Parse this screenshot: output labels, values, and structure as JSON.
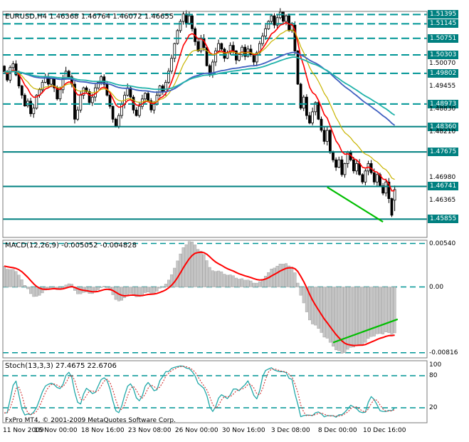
{
  "window": {
    "app": "FxPro MT4",
    "symbol": "EURUSD",
    "timeframe": "H4"
  },
  "main_panel": {
    "title": "EURUSD,H4 1.46368 1.46764 1.46072 1.46655"
  },
  "macd_panel": {
    "title": "MACD(12,26,9) -0.005052 -0.004828",
    "value_main": -0.005052,
    "value_signal": -0.004828
  },
  "stoch_panel": {
    "title": "Stoch(13,3,3) 27.4675 22.6706",
    "value_k": 27.4675,
    "value_d": 22.6706
  },
  "footer": {
    "copyright": "FxPro MT4, © 2001-2009 MetaQuotes Software Corp."
  },
  "colors": {
    "background": "#FFFFFF",
    "foreground": "#000000",
    "grid_teal": "#009696",
    "level_teal": "#008080",
    "bull_candle": "#FFFFFF",
    "bear_candle": "#000000",
    "macd_histogram": "#C6C6C6",
    "macd_signal": "#FF0000",
    "stoch_main": "#20A8A8",
    "stoch_signal": "#D03030",
    "trendline_green": "#00BE00",
    "price_box_bg": "#008080",
    "price_box_text": "#FFFFFF"
  },
  "chart_data": {
    "type": "candlestick",
    "symbol": "EURUSD",
    "timeframe": "H4",
    "current_bar": {
      "open": 1.46368,
      "high": 1.46764,
      "low": 1.46072,
      "close": 1.46655
    },
    "x_axis": {
      "labels": [
        {
          "bar": 0,
          "text": "11 Nov 2009"
        },
        {
          "bar": 18,
          "text": "16 Nov 00:00"
        },
        {
          "bar": 34,
          "text": "18 Nov 16:00"
        },
        {
          "bar": 50,
          "text": "23 Nov 08:00"
        },
        {
          "bar": 66,
          "text": "26 Nov 00:00"
        },
        {
          "bar": 82,
          "text": "30 Nov 16:00"
        },
        {
          "bar": 98,
          "text": "3 Dec 08:00"
        },
        {
          "bar": 114,
          "text": "8 Dec 00:00"
        },
        {
          "bar": 130,
          "text": "10 Dec 16:00"
        }
      ]
    },
    "price_axis": {
      "min": 1.4536,
      "max": 1.5148,
      "ticks": [
        {
          "price": 1.5007,
          "label": "1.50070"
        },
        {
          "price": 1.49455,
          "label": "1.49455"
        },
        {
          "price": 1.4883,
          "label": "1.48830"
        },
        {
          "price": 1.4821,
          "label": "1.48210"
        },
        {
          "price": 1.4698,
          "label": "1.46980"
        },
        {
          "price": 1.46365,
          "label": "1.46365"
        }
      ],
      "levels": [
        {
          "price": 1.51395,
          "label": "1.51395",
          "style": "dashed"
        },
        {
          "price": 1.51145,
          "label": "1.51145",
          "style": "dashed"
        },
        {
          "price": 1.50751,
          "label": "1.50751",
          "style": "dashed"
        },
        {
          "price": 1.50303,
          "label": "1.50303",
          "style": "dashed"
        },
        {
          "price": 1.49802,
          "label": "1.49802",
          "style": "dashed"
        },
        {
          "price": 1.48973,
          "label": "1.48973",
          "style": "dashed"
        },
        {
          "price": 1.4836,
          "label": "1.48360",
          "style": "solid"
        },
        {
          "price": 1.47675,
          "label": "1.47675",
          "style": "solid"
        },
        {
          "price": 1.46741,
          "label": "1.46741",
          "style": "solid"
        },
        {
          "price": 1.45855,
          "label": "1.45855",
          "style": "solid"
        }
      ]
    },
    "closes": [
      1.4985,
      1.4962,
      1.4996,
      1.5006,
      1.4976,
      1.4946,
      1.4921,
      1.4892,
      1.4905,
      1.4871,
      1.4886,
      1.4921,
      1.4936,
      1.4956,
      1.4971,
      1.4951,
      1.4966,
      1.4941,
      1.4911,
      1.4936,
      1.4966,
      1.4986,
      1.4971,
      1.4951,
      1.4856,
      1.4881,
      1.4921,
      1.4941,
      1.4931,
      1.4901,
      1.4916,
      1.4941,
      1.4956,
      1.4971,
      1.4951,
      1.4921,
      1.4891,
      1.4856,
      1.4836,
      1.4866,
      1.4896,
      1.4921,
      1.4941,
      1.4916,
      1.4881,
      1.4866,
      1.4891,
      1.4911,
      1.4926,
      1.4906,
      1.4881,
      1.4896,
      1.4921,
      1.4946,
      1.4931,
      1.4956,
      1.4986,
      1.5021,
      1.5061,
      1.5096,
      1.5121,
      1.5141,
      1.5116,
      1.5136,
      1.5101,
      1.5066,
      1.5041,
      1.5075,
      1.505,
      1.5001,
      1.4976,
      1.5011,
      1.5041,
      1.5061,
      1.5046,
      1.5021,
      1.5036,
      1.5056,
      1.5041,
      1.5016,
      1.5031,
      1.5051,
      1.5026,
      1.5046,
      1.5031,
      1.5011,
      1.5036,
      1.5061,
      1.5081,
      1.5101,
      1.5121,
      1.5136,
      1.5111,
      1.5131,
      1.5146,
      1.5121,
      1.5136,
      1.5096,
      1.5111,
      1.5041,
      1.4951,
      1.4886,
      1.4916,
      1.4866,
      1.4846,
      1.4876,
      1.4901,
      1.4856,
      1.4826,
      1.4796,
      1.4826,
      1.4766,
      1.4746,
      1.4726,
      1.4746,
      1.4706,
      1.4736,
      1.4766,
      1.4746,
      1.4716,
      1.4736,
      1.4706,
      1.4686,
      1.4716,
      1.4736,
      1.4711,
      1.4686,
      1.4706,
      1.4676,
      1.4656,
      1.4686,
      1.4641,
      1.4596,
      1.46655
    ],
    "moving_averages": [
      {
        "name": "ma-fast-red",
        "period": 8,
        "color": "#FF0000",
        "width": 1.6
      },
      {
        "name": "ma-medium-yellow",
        "period": 16,
        "color": "#C8B400",
        "width": 1.2
      },
      {
        "name": "ma-slow-blue",
        "period": 64,
        "color": "#4060C0",
        "width": 1.8
      },
      {
        "name": "ma-slowest-teal",
        "period": 84,
        "color": "#20B2AA",
        "width": 1.8
      }
    ],
    "macd": {
      "fast": 12,
      "slow": 26,
      "signal_period": 9,
      "range": [
        -0.0088,
        0.0058
      ],
      "gridlines": [
        {
          "value": 0.0054,
          "label": "0.00540"
        },
        {
          "value": 0,
          "label": "0.00"
        },
        {
          "value": -0.00816,
          "label": "-0.00816"
        }
      ]
    },
    "stochastic": {
      "k_period": 13,
      "d_period": 3,
      "slowing": 3,
      "gridlines": [
        {
          "value": 80,
          "label": "80"
        },
        {
          "value": 20,
          "label": "20"
        }
      ],
      "scale_labels": [
        {
          "value": 100,
          "label": "100"
        },
        {
          "value": 80,
          "label": "80"
        },
        {
          "value": 20,
          "label": "20"
        }
      ]
    },
    "trendlines": [
      {
        "panel": "main",
        "from_bar": 110,
        "from_value": 1.4672,
        "to_bar": 129,
        "to_value": 1.4578,
        "color": "#00BE00"
      },
      {
        "panel": "macd",
        "from_bar": 112,
        "from_value": -0.0069,
        "to_bar": 134,
        "to_value": -0.004,
        "color": "#00BE00"
      }
    ]
  }
}
